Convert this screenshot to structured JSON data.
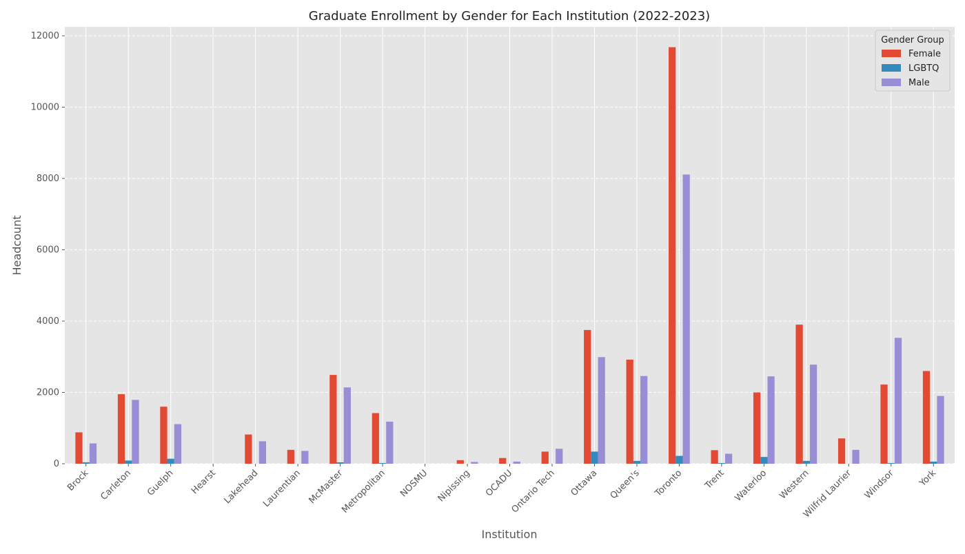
{
  "chart_data": {
    "type": "bar",
    "title": "Graduate Enrollment by Gender for Each Institution (2022-2023)",
    "xlabel": "Institution",
    "ylabel": "Headcount",
    "ylim": [
      0,
      12250
    ],
    "yticks": [
      0,
      2000,
      4000,
      6000,
      8000,
      10000,
      12000
    ],
    "grid": true,
    "legend": {
      "title": "Gender Group",
      "placement": "top-right"
    },
    "categories": [
      "Brock",
      "Carleton",
      "Guelph",
      "Hearst",
      "Lakehead",
      "Laurentian",
      "McMaster",
      "Metropolitan",
      "NOSMU",
      "Nipissing",
      "OCADU",
      "Ontario Tech",
      "Ottawa",
      "Queen's",
      "Toronto",
      "Trent",
      "Waterloo",
      "Western",
      "Wilfrid Laurier",
      "Windsor",
      "York"
    ],
    "series": [
      {
        "name": "Female",
        "color": "#E24A33",
        "values": [
          880,
          1950,
          1600,
          0,
          820,
          390,
          2490,
          1420,
          0,
          100,
          160,
          340,
          3750,
          2920,
          11680,
          380,
          2000,
          3900,
          710,
          2220,
          2600
        ]
      },
      {
        "name": "LGBTQ",
        "color": "#348ABD",
        "values": [
          40,
          90,
          140,
          0,
          0,
          0,
          40,
          20,
          0,
          0,
          0,
          0,
          340,
          80,
          220,
          20,
          190,
          80,
          0,
          20,
          60
        ]
      },
      {
        "name": "Male",
        "color": "#988ED5",
        "values": [
          570,
          1790,
          1110,
          0,
          630,
          360,
          2140,
          1180,
          0,
          50,
          60,
          420,
          2990,
          2460,
          8110,
          280,
          2450,
          2780,
          390,
          3530,
          1900
        ]
      }
    ]
  }
}
